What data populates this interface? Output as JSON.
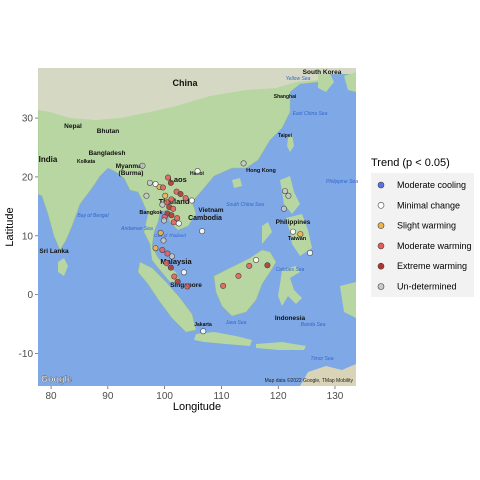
{
  "chart_data": {
    "type": "scatter",
    "title": "",
    "xlabel": "Longitude",
    "ylabel": "Latitude",
    "xlim": [
      77.7,
      133.7
    ],
    "ylim": [
      -15.5,
      38.5
    ],
    "xticks": [
      80,
      90,
      100,
      110,
      120,
      130
    ],
    "yticks": [
      -10,
      0,
      10,
      20,
      30
    ],
    "grid": true,
    "legend": {
      "title": "Trend (p < 0.05)",
      "position": "right",
      "entries": [
        {
          "name": "Moderate cooling",
          "color": "#5a70e6"
        },
        {
          "name": "Minimal change",
          "color": "#ffffff"
        },
        {
          "name": "Slight warming",
          "color": "#f2b24a"
        },
        {
          "name": "Moderate warming",
          "color": "#ea5a5a"
        },
        {
          "name": "Extreme warming",
          "color": "#b3332e"
        },
        {
          "name": "Un-determined",
          "color": "#c9c9c9"
        }
      ]
    },
    "points": [
      {
        "lon": 96.8,
        "lat": 16.8,
        "trend": "Un-determined"
      },
      {
        "lon": 97.4,
        "lat": 19.0,
        "trend": "Un-determined"
      },
      {
        "lon": 96.1,
        "lat": 21.9,
        "trend": "Un-determined"
      },
      {
        "lon": 98.4,
        "lat": 18.8,
        "trend": "Minimal change"
      },
      {
        "lon": 99.1,
        "lat": 18.3,
        "trend": "Slight warming"
      },
      {
        "lon": 99.7,
        "lat": 18.2,
        "trend": "Moderate warming"
      },
      {
        "lon": 100.6,
        "lat": 19.9,
        "trend": "Moderate warming"
      },
      {
        "lon": 101.1,
        "lat": 19.0,
        "trend": "Extreme warming"
      },
      {
        "lon": 102.1,
        "lat": 17.5,
        "trend": "Moderate warming"
      },
      {
        "lon": 102.8,
        "lat": 17.1,
        "trend": "Extreme warming"
      },
      {
        "lon": 103.7,
        "lat": 16.4,
        "trend": "Moderate warming"
      },
      {
        "lon": 104.8,
        "lat": 16.0,
        "trend": "Minimal change"
      },
      {
        "lon": 100.1,
        "lat": 16.8,
        "trend": "Slight warming"
      },
      {
        "lon": 101.2,
        "lat": 16.2,
        "trend": "Moderate warming"
      },
      {
        "lon": 100.4,
        "lat": 15.7,
        "trend": "Moderate warming"
      },
      {
        "lon": 99.6,
        "lat": 15.3,
        "trend": "Un-determined"
      },
      {
        "lon": 100.8,
        "lat": 14.9,
        "trend": "Extreme warming"
      },
      {
        "lon": 101.5,
        "lat": 14.6,
        "trend": "Moderate warming"
      },
      {
        "lon": 100.5,
        "lat": 13.8,
        "trend": "Extreme warming"
      },
      {
        "lon": 101.2,
        "lat": 13.5,
        "trend": "Extreme warming"
      },
      {
        "lon": 100.0,
        "lat": 13.2,
        "trend": "Moderate warming"
      },
      {
        "lon": 102.2,
        "lat": 13.0,
        "trend": "Moderate warming"
      },
      {
        "lon": 101.6,
        "lat": 12.3,
        "trend": "Moderate warming"
      },
      {
        "lon": 102.5,
        "lat": 12.1,
        "trend": "Minimal change"
      },
      {
        "lon": 99.9,
        "lat": 12.6,
        "trend": "Un-determined"
      },
      {
        "lon": 99.3,
        "lat": 10.5,
        "trend": "Slight warming"
      },
      {
        "lon": 99.8,
        "lat": 9.2,
        "trend": "Un-determined"
      },
      {
        "lon": 98.4,
        "lat": 7.9,
        "trend": "Slight warming"
      },
      {
        "lon": 99.6,
        "lat": 7.6,
        "trend": "Moderate warming"
      },
      {
        "lon": 100.5,
        "lat": 7.0,
        "trend": "Moderate warming"
      },
      {
        "lon": 101.3,
        "lat": 6.5,
        "trend": "Un-determined"
      },
      {
        "lon": 100.3,
        "lat": 5.4,
        "trend": "Moderate warming"
      },
      {
        "lon": 101.1,
        "lat": 4.6,
        "trend": "Extreme warming"
      },
      {
        "lon": 101.7,
        "lat": 3.1,
        "trend": "Moderate warming"
      },
      {
        "lon": 102.3,
        "lat": 2.2,
        "trend": "Extreme warming"
      },
      {
        "lon": 103.4,
        "lat": 3.8,
        "trend": "Minimal change"
      },
      {
        "lon": 104.0,
        "lat": 1.4,
        "trend": "Moderate warming"
      },
      {
        "lon": 105.8,
        "lat": 21.0,
        "trend": "Minimal change"
      },
      {
        "lon": 106.6,
        "lat": 10.8,
        "trend": "Minimal change"
      },
      {
        "lon": 113.9,
        "lat": 22.3,
        "trend": "Un-determined"
      },
      {
        "lon": 121.0,
        "lat": 14.6,
        "trend": "Un-determined"
      },
      {
        "lon": 121.2,
        "lat": 17.6,
        "trend": "Un-determined"
      },
      {
        "lon": 121.8,
        "lat": 16.8,
        "trend": "Un-determined"
      },
      {
        "lon": 122.6,
        "lat": 10.7,
        "trend": "Minimal change"
      },
      {
        "lon": 123.9,
        "lat": 10.3,
        "trend": "Slight warming"
      },
      {
        "lon": 125.6,
        "lat": 7.1,
        "trend": "Minimal change"
      },
      {
        "lon": 110.3,
        "lat": 1.5,
        "trend": "Moderate warming"
      },
      {
        "lon": 113.0,
        "lat": 3.2,
        "trend": "Moderate warming"
      },
      {
        "lon": 116.1,
        "lat": 5.9,
        "trend": "Minimal change"
      },
      {
        "lon": 118.1,
        "lat": 5.0,
        "trend": "Extreme warming"
      },
      {
        "lon": 114.9,
        "lat": 4.9,
        "trend": "Moderate warming"
      },
      {
        "lon": 106.8,
        "lat": -6.2,
        "trend": "Minimal change"
      }
    ]
  },
  "map": {
    "attribution_logo": "Google",
    "attribution_text": "Map data ©2022 Google, TMap Mobility",
    "labels": [
      {
        "text": "China",
        "kind": "country"
      },
      {
        "text": "South Korea",
        "kind": "country"
      },
      {
        "text": "Nepal",
        "kind": "country"
      },
      {
        "text": "Bhutan",
        "kind": "country"
      },
      {
        "text": "Bangladesh",
        "kind": "country"
      },
      {
        "text": "India",
        "kind": "country"
      },
      {
        "text": "Myanmar",
        "kind": "country"
      },
      {
        "text": "(Burma)",
        "kind": "country"
      },
      {
        "text": "Laos",
        "kind": "country"
      },
      {
        "text": "Thailand",
        "kind": "country"
      },
      {
        "text": "Vietnam",
        "kind": "country"
      },
      {
        "text": "Cambodia",
        "kind": "country"
      },
      {
        "text": "Philippines",
        "kind": "country"
      },
      {
        "text": "Malaysia",
        "kind": "country"
      },
      {
        "text": "Singapore",
        "kind": "country"
      },
      {
        "text": "Indonesia",
        "kind": "country"
      },
      {
        "text": "Sri Lanka",
        "kind": "country"
      },
      {
        "text": "Taiwan",
        "kind": "country"
      },
      {
        "text": "Hong Kong",
        "kind": "city"
      },
      {
        "text": "Shanghai",
        "kind": "city"
      },
      {
        "text": "Taipei",
        "kind": "city"
      },
      {
        "text": "Kolkata",
        "kind": "city"
      },
      {
        "text": "Hanoi",
        "kind": "city"
      },
      {
        "text": "Bangkok",
        "kind": "city"
      },
      {
        "text": "Jakarta",
        "kind": "city"
      },
      {
        "text": "Bay of Bengal",
        "kind": "sea"
      },
      {
        "text": "Andaman Sea",
        "kind": "sea"
      },
      {
        "text": "South China Sea",
        "kind": "sea"
      },
      {
        "text": "Java Sea",
        "kind": "sea"
      },
      {
        "text": "East China Sea",
        "kind": "sea"
      },
      {
        "text": "Yellow Sea",
        "kind": "sea"
      },
      {
        "text": "Philippine Sea",
        "kind": "sea"
      },
      {
        "text": "Celebes Sea",
        "kind": "sea"
      },
      {
        "text": "Banda Sea",
        "kind": "sea"
      },
      {
        "text": "Timor Sea",
        "kind": "sea"
      },
      {
        "text": "Gulf of Thailand",
        "kind": "sea"
      }
    ]
  }
}
